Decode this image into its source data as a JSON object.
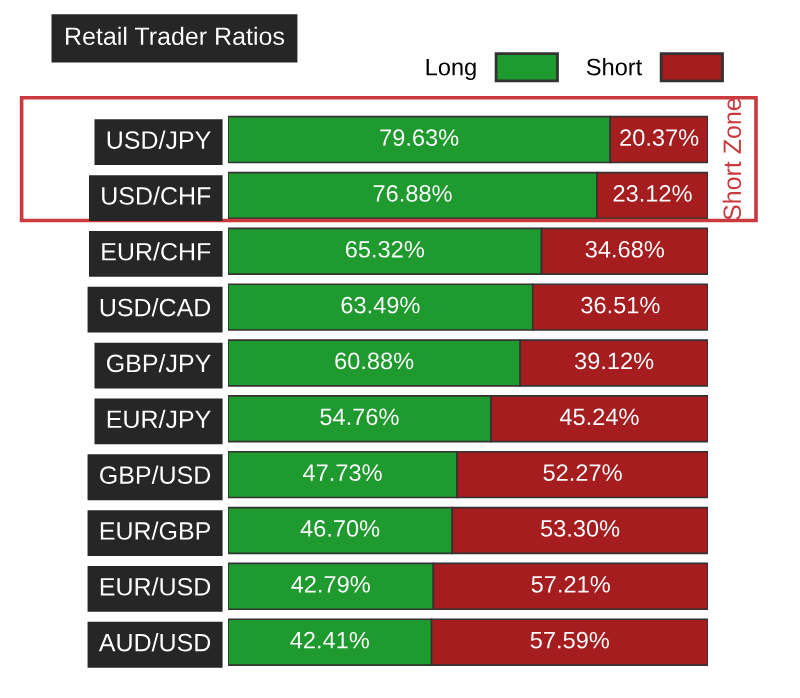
{
  "chart_data": {
    "type": "bar",
    "orientation": "horizontal",
    "stacked": true,
    "title": "Retail Trader Ratios",
    "categories": [
      "USD/JPY",
      "USD/CHF",
      "EUR/CHF",
      "USD/CAD",
      "GBP/JPY",
      "EUR/JPY",
      "GBP/USD",
      "EUR/GBP",
      "EUR/USD",
      "AUD/USD"
    ],
    "series": [
      {
        "name": "Long",
        "color": "#1f9a2f",
        "values": [
          79.63,
          76.88,
          65.32,
          63.49,
          60.88,
          54.76,
          47.73,
          46.7,
          42.79,
          42.41
        ],
        "value_labels": [
          "79.63%",
          "76.88%",
          "65.32%",
          "63.49%",
          "60.88%",
          "54.76%",
          "47.73%",
          "46.70%",
          "42.79%",
          "42.41%"
        ]
      },
      {
        "name": "Short",
        "color": "#a51d1f",
        "values": [
          20.37,
          23.12,
          34.68,
          36.51,
          39.12,
          45.24,
          52.27,
          53.3,
          57.21,
          57.59
        ],
        "value_labels": [
          "20.37%",
          "23.12%",
          "34.68%",
          "36.51%",
          "39.12%",
          "45.24%",
          "52.27%",
          "53.30%",
          "57.21%",
          "57.59%"
        ]
      }
    ],
    "annotations": [
      "Short Zone"
    ],
    "legend": "top",
    "grid": false
  }
}
